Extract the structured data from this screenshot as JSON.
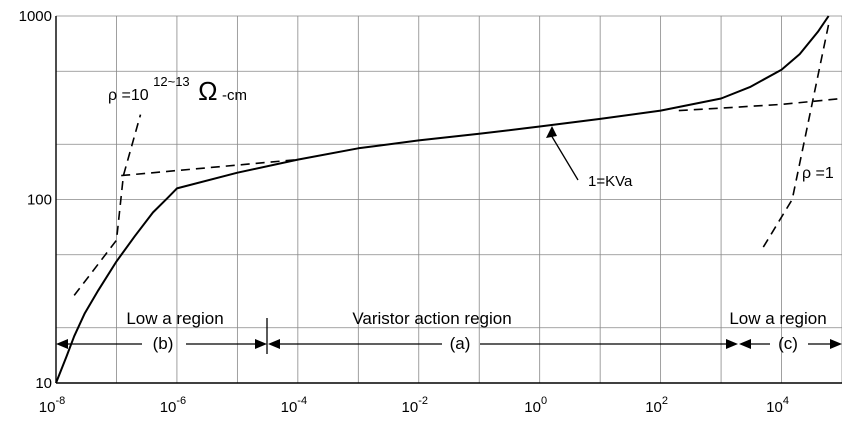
{
  "chart_data": {
    "type": "line",
    "title": "",
    "xlabel": "",
    "ylabel": "",
    "x_scale": "log",
    "y_scale": "log",
    "xlim": [
      1e-08,
      100000.0
    ],
    "ylim": [
      10,
      1000
    ],
    "grid": true,
    "x_ticks": [
      {
        "base": "10",
        "exp": "-8"
      },
      {
        "base": "10",
        "exp": "-6"
      },
      {
        "base": "10",
        "exp": "-4"
      },
      {
        "base": "10",
        "exp": "-2"
      },
      {
        "base": "10",
        "exp": "0"
      },
      {
        "base": "10",
        "exp": "2"
      },
      {
        "base": "10",
        "exp": "4"
      }
    ],
    "y_ticks": [
      "10",
      "100",
      "1000"
    ],
    "series": [
      {
        "style": "solid",
        "x": [
          1e-08,
          1.5e-08,
          2e-08,
          3e-08,
          5e-08,
          1e-07,
          2e-07,
          4e-07,
          7e-07,
          1e-06,
          1e-05,
          0.0001,
          0.001,
          0.01,
          0.1,
          1,
          10,
          100,
          1000,
          3000,
          10000.0,
          20000.0,
          40000.0,
          60000.0
        ],
        "y": [
          10,
          14,
          18,
          24,
          32,
          46,
          63,
          85,
          102,
          115,
          140,
          165,
          190,
          210,
          228,
          250,
          275,
          305,
          355,
          410,
          510,
          620,
          820,
          1000
        ]
      },
      {
        "style": "dashed",
        "x": [
          2e-08,
          1e-07,
          1.3e-07,
          2.5e-07
        ],
        "y": [
          30,
          60,
          135,
          290
        ]
      },
      {
        "style": "dashed",
        "x": [
          1.2e-07,
          0.0001
        ],
        "y": [
          135,
          165
        ]
      },
      {
        "style": "dashed",
        "x": [
          200,
          1000.0,
          10000.0,
          100000.0
        ],
        "y": [
          305,
          315,
          330,
          355
        ]
      },
      {
        "style": "dashed",
        "x": [
          5000.0,
          15000.0,
          60000.0
        ],
        "y": [
          55,
          100,
          900
        ]
      }
    ],
    "annotations": [
      {
        "text": "1=KVa",
        "x": 3,
        "y": 240
      },
      {
        "text_prefix": "ρ =10",
        "text_sup": "12~13",
        "text_omega": "Ω",
        "text_sub": "-cm"
      },
      {
        "text": "ρ =1"
      }
    ],
    "regions": [
      {
        "title": "Low a region",
        "tag": "(b)",
        "x_range": [
          1e-08,
          3e-05
        ]
      },
      {
        "title": "Varistor action region",
        "tag": "(a)",
        "x_range": [
          3e-05,
          1500.0
        ]
      },
      {
        "title": "Low a region",
        "tag": "(c)",
        "x_range": [
          1500.0,
          100000.0
        ]
      }
    ]
  }
}
